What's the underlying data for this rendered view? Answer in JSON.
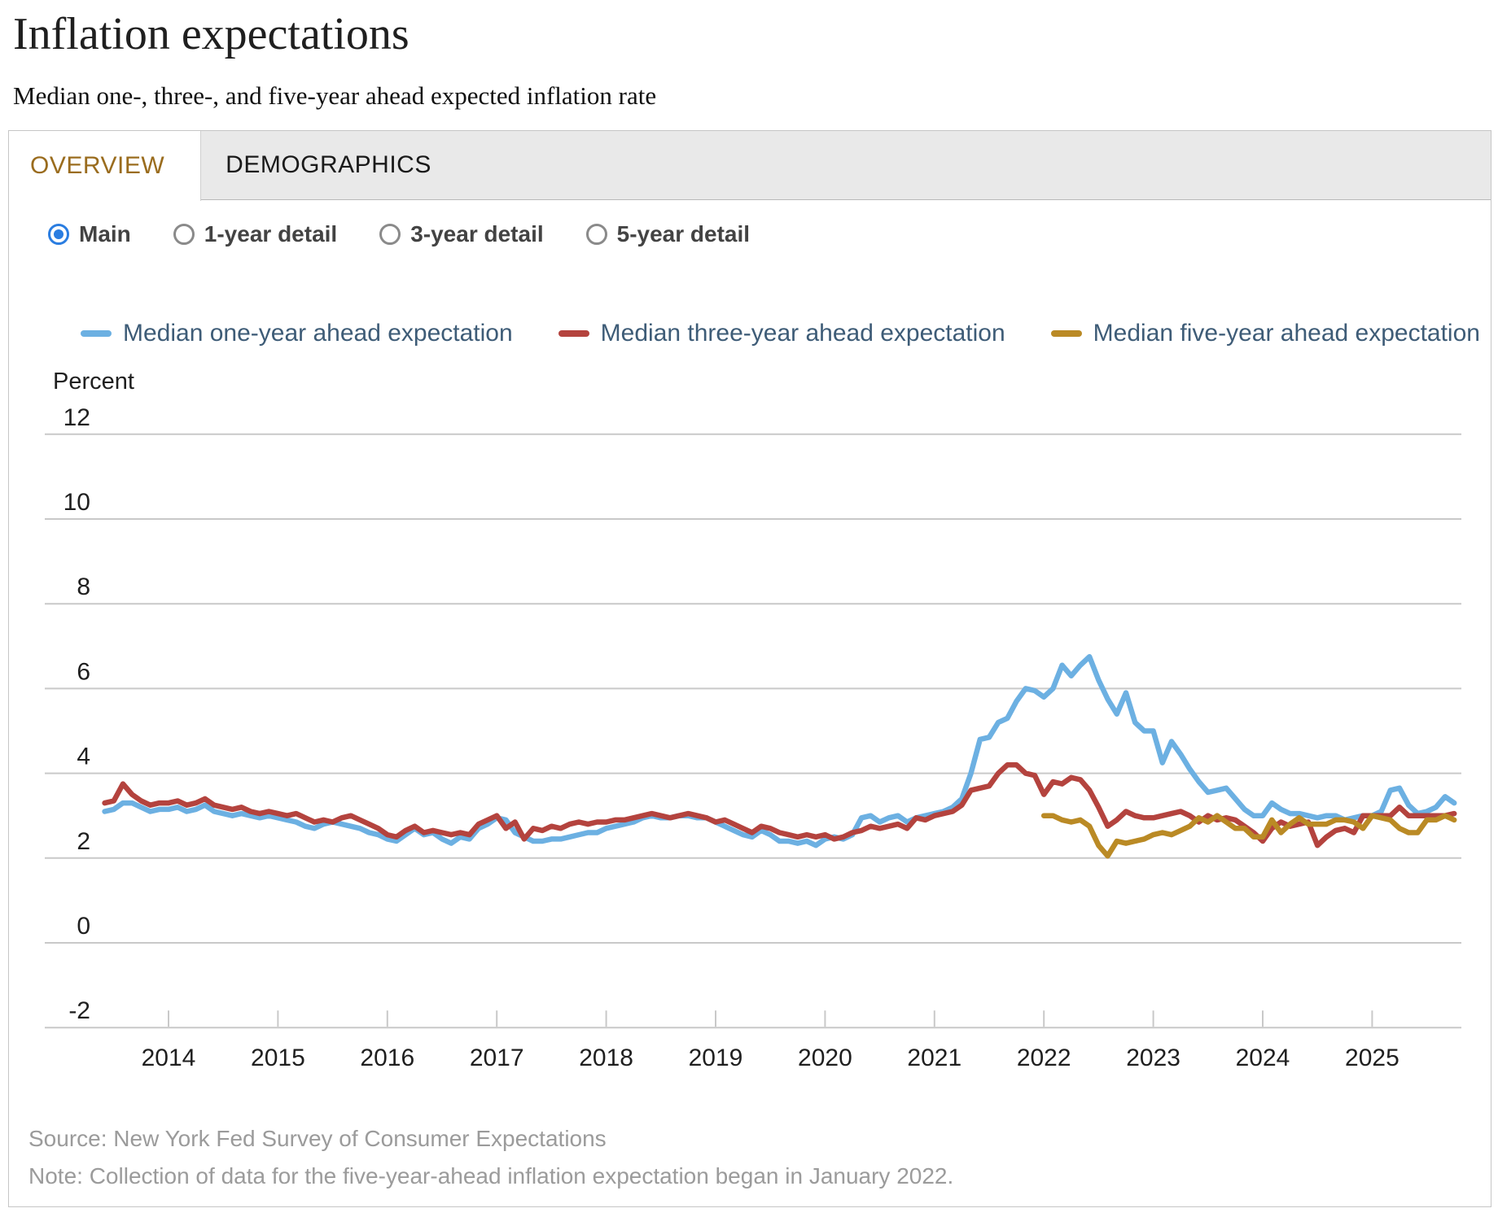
{
  "page": {
    "title": "Inflation expectations",
    "subtitle": "Median one-, three-, and five-year ahead expected inflation rate"
  },
  "tabs": [
    {
      "label": "OVERVIEW",
      "active": true
    },
    {
      "label": "DEMOGRAPHICS",
      "active": false
    }
  ],
  "view_options": [
    {
      "label": "Main",
      "selected": true
    },
    {
      "label": "1-year detail",
      "selected": false
    },
    {
      "label": "3-year detail",
      "selected": false
    },
    {
      "label": "5-year detail",
      "selected": false
    }
  ],
  "colors": {
    "one_year_line": "#6cb0e2",
    "three_year_line": "#b4433e",
    "five_year_line": "#ba8a25",
    "active_tab_text": "#9a6c1e",
    "radio_selected": "#2a7de1",
    "legend_text": "#3e5c77",
    "gridline": "#c9c9c9",
    "axis_text": "#1f1f1f",
    "footer_text": "#9b9b9b"
  },
  "footer": {
    "source": "Source: New York Fed Survey of Consumer Expectations",
    "note": "Note: Collection of data for the five-year-ahead inflation expectation began in January 2022."
  },
  "chart_data": {
    "type": "line",
    "title": "",
    "ylabel": "Percent",
    "xlabel": "",
    "ylim": [
      -2.6,
      13
    ],
    "yticks": [
      12,
      10,
      8,
      6,
      4,
      2,
      0,
      -2
    ],
    "xticks": [
      2014,
      2015,
      2016,
      2017,
      2018,
      2019,
      2020,
      2021,
      2022,
      2023,
      2024,
      2025
    ],
    "grid": "horizontal",
    "legend_position": "top",
    "x_unit": "monthly",
    "series": [
      {
        "name": "Median one-year ahead expectation",
        "color": "#6cb0e2",
        "start": "2013-06",
        "values": [
          3.1,
          3.15,
          3.3,
          3.3,
          3.2,
          3.1,
          3.15,
          3.15,
          3.2,
          3.1,
          3.15,
          3.25,
          3.1,
          3.05,
          3.0,
          3.05,
          3.0,
          2.95,
          3.0,
          2.95,
          2.9,
          2.85,
          2.75,
          2.7,
          2.8,
          2.85,
          2.8,
          2.75,
          2.7,
          2.6,
          2.55,
          2.45,
          2.4,
          2.55,
          2.7,
          2.55,
          2.6,
          2.45,
          2.35,
          2.5,
          2.45,
          2.7,
          2.8,
          2.95,
          2.9,
          2.6,
          2.5,
          2.4,
          2.4,
          2.45,
          2.45,
          2.5,
          2.55,
          2.6,
          2.6,
          2.7,
          2.75,
          2.8,
          2.85,
          2.95,
          3.0,
          2.95,
          2.95,
          3.0,
          3.0,
          2.95,
          2.95,
          2.85,
          2.75,
          2.65,
          2.55,
          2.5,
          2.65,
          2.55,
          2.4,
          2.4,
          2.35,
          2.4,
          2.3,
          2.45,
          2.5,
          2.45,
          2.55,
          2.95,
          3.0,
          2.85,
          2.95,
          3.0,
          2.85,
          2.95,
          3.0,
          3.05,
          3.1,
          3.2,
          3.4,
          4.0,
          4.8,
          4.85,
          5.2,
          5.3,
          5.7,
          6.0,
          5.95,
          5.8,
          6.0,
          6.55,
          6.3,
          6.55,
          6.75,
          6.2,
          5.75,
          5.4,
          5.9,
          5.2,
          5.0,
          5.0,
          4.25,
          4.75,
          4.45,
          4.1,
          3.8,
          3.55,
          3.6,
          3.65,
          3.4,
          3.15,
          3.0,
          3.0,
          3.3,
          3.15,
          3.05,
          3.05,
          3.0,
          2.95,
          3.0,
          3.0,
          2.9,
          2.95,
          3.0,
          3.0,
          3.1,
          3.6,
          3.65,
          3.25,
          3.05,
          3.1,
          3.2,
          3.45,
          3.3
        ]
      },
      {
        "name": "Median three-year ahead expectation",
        "color": "#b4433e",
        "start": "2013-06",
        "values": [
          3.3,
          3.35,
          3.75,
          3.5,
          3.35,
          3.25,
          3.3,
          3.3,
          3.35,
          3.25,
          3.3,
          3.4,
          3.25,
          3.2,
          3.15,
          3.2,
          3.1,
          3.05,
          3.1,
          3.05,
          3.0,
          3.05,
          2.95,
          2.85,
          2.9,
          2.85,
          2.95,
          3.0,
          2.9,
          2.8,
          2.7,
          2.55,
          2.5,
          2.65,
          2.75,
          2.6,
          2.65,
          2.6,
          2.55,
          2.6,
          2.55,
          2.8,
          2.9,
          3.0,
          2.7,
          2.85,
          2.45,
          2.7,
          2.65,
          2.75,
          2.7,
          2.8,
          2.85,
          2.8,
          2.85,
          2.85,
          2.9,
          2.9,
          2.95,
          3.0,
          3.05,
          3.0,
          2.95,
          3.0,
          3.05,
          3.0,
          2.95,
          2.85,
          2.9,
          2.8,
          2.7,
          2.6,
          2.75,
          2.7,
          2.6,
          2.55,
          2.5,
          2.55,
          2.5,
          2.55,
          2.45,
          2.5,
          2.6,
          2.65,
          2.75,
          2.7,
          2.75,
          2.8,
          2.7,
          2.95,
          2.9,
          3.0,
          3.05,
          3.1,
          3.25,
          3.6,
          3.65,
          3.7,
          4.0,
          4.2,
          4.2,
          4.0,
          3.95,
          3.5,
          3.8,
          3.75,
          3.9,
          3.85,
          3.6,
          3.2,
          2.75,
          2.9,
          3.1,
          3.0,
          2.95,
          2.95,
          3.0,
          3.05,
          3.1,
          3.0,
          2.85,
          3.0,
          2.9,
          2.95,
          2.9,
          2.75,
          2.6,
          2.4,
          2.7,
          2.85,
          2.75,
          2.8,
          2.85,
          2.3,
          2.5,
          2.65,
          2.7,
          2.6,
          3.0,
          3.0,
          3.0,
          3.0,
          3.2,
          3.0,
          3.0,
          3.0,
          3.0,
          3.0,
          3.05
        ]
      },
      {
        "name": "Median five-year ahead expectation",
        "color": "#ba8a25",
        "start": "2022-01",
        "values": [
          3.0,
          3.0,
          2.9,
          2.85,
          2.9,
          2.75,
          2.3,
          2.05,
          2.4,
          2.35,
          2.4,
          2.45,
          2.55,
          2.6,
          2.55,
          2.65,
          2.75,
          2.95,
          2.85,
          3.0,
          2.85,
          2.7,
          2.7,
          2.5,
          2.5,
          2.9,
          2.6,
          2.8,
          2.95,
          2.8,
          2.8,
          2.8,
          2.9,
          2.9,
          2.85,
          2.7,
          3.0,
          2.95,
          2.9,
          2.7,
          2.6,
          2.6,
          2.9,
          2.9,
          3.0,
          2.9
        ]
      }
    ]
  }
}
